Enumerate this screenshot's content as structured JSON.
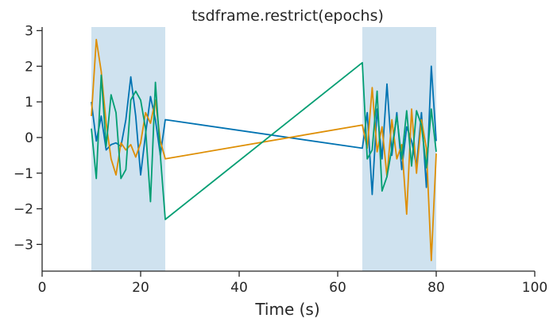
{
  "chart_data": {
    "type": "line",
    "title": "tsdframe.restrict(epochs)",
    "xlabel": "Time (s)",
    "ylabel": "",
    "xlim": [
      0,
      100
    ],
    "ylim": [
      -3.75,
      3.1
    ],
    "xticks": [
      0,
      20,
      40,
      60,
      80,
      100
    ],
    "yticks": [
      -3,
      -2,
      -1,
      0,
      1,
      2,
      3
    ],
    "grid": false,
    "legend": "none",
    "shaded_epochs": [
      [
        10,
        25
      ],
      [
        65,
        80
      ]
    ],
    "series": [
      {
        "color": "#0173b2",
        "x": [
          10,
          11,
          12,
          13,
          14,
          15,
          16,
          17,
          18,
          19,
          20,
          21,
          22,
          23,
          24,
          25,
          65,
          66,
          67,
          68,
          69,
          70,
          71,
          72,
          73,
          74,
          75,
          76,
          77,
          78,
          79,
          80
        ],
        "y": [
          1.0,
          -0.1,
          0.6,
          -0.35,
          -0.2,
          -0.15,
          -0.25,
          0.5,
          1.7,
          0.6,
          -1.05,
          0.1,
          1.15,
          0.5,
          -0.5,
          0.5,
          -0.3,
          0.7,
          -1.6,
          0.8,
          -0.6,
          1.5,
          -0.5,
          0.7,
          -0.9,
          0.3,
          -0.1,
          -0.8,
          0.7,
          -1.4,
          2.0,
          -0.1
        ]
      },
      {
        "color": "#de8f05",
        "x": [
          10,
          11,
          12,
          13,
          14,
          15,
          16,
          17,
          18,
          19,
          20,
          21,
          22,
          23,
          24,
          25,
          65,
          66,
          67,
          68,
          69,
          70,
          71,
          72,
          73,
          74,
          75,
          76,
          77,
          78,
          79,
          80
        ],
        "y": [
          0.6,
          2.75,
          1.85,
          0.4,
          -0.6,
          -1.05,
          -0.15,
          -0.35,
          -0.2,
          -0.55,
          -0.15,
          0.7,
          0.4,
          1.05,
          -0.1,
          -0.6,
          0.35,
          -0.3,
          1.4,
          -0.4,
          0.3,
          -1.1,
          0.5,
          -0.6,
          -0.2,
          -2.15,
          0.8,
          -1.0,
          0.5,
          -0.3,
          -3.45,
          -0.45
        ]
      },
      {
        "color": "#029e73",
        "x": [
          10,
          11,
          12,
          13,
          14,
          15,
          16,
          17,
          18,
          19,
          20,
          21,
          22,
          23,
          24,
          25,
          65,
          66,
          67,
          68,
          69,
          70,
          71,
          72,
          73,
          74,
          75,
          76,
          77,
          78,
          79,
          80
        ],
        "y": [
          0.25,
          -1.15,
          1.75,
          -0.25,
          1.2,
          0.7,
          -1.15,
          -0.9,
          1.05,
          1.3,
          1.05,
          0.25,
          -1.8,
          1.55,
          -0.5,
          -2.3,
          2.1,
          -0.6,
          -0.35,
          1.3,
          -1.5,
          -1.1,
          -0.3,
          0.6,
          -0.6,
          0.75,
          -0.8,
          0.75,
          0.35,
          -0.85,
          0.8,
          -0.4
        ]
      }
    ]
  }
}
